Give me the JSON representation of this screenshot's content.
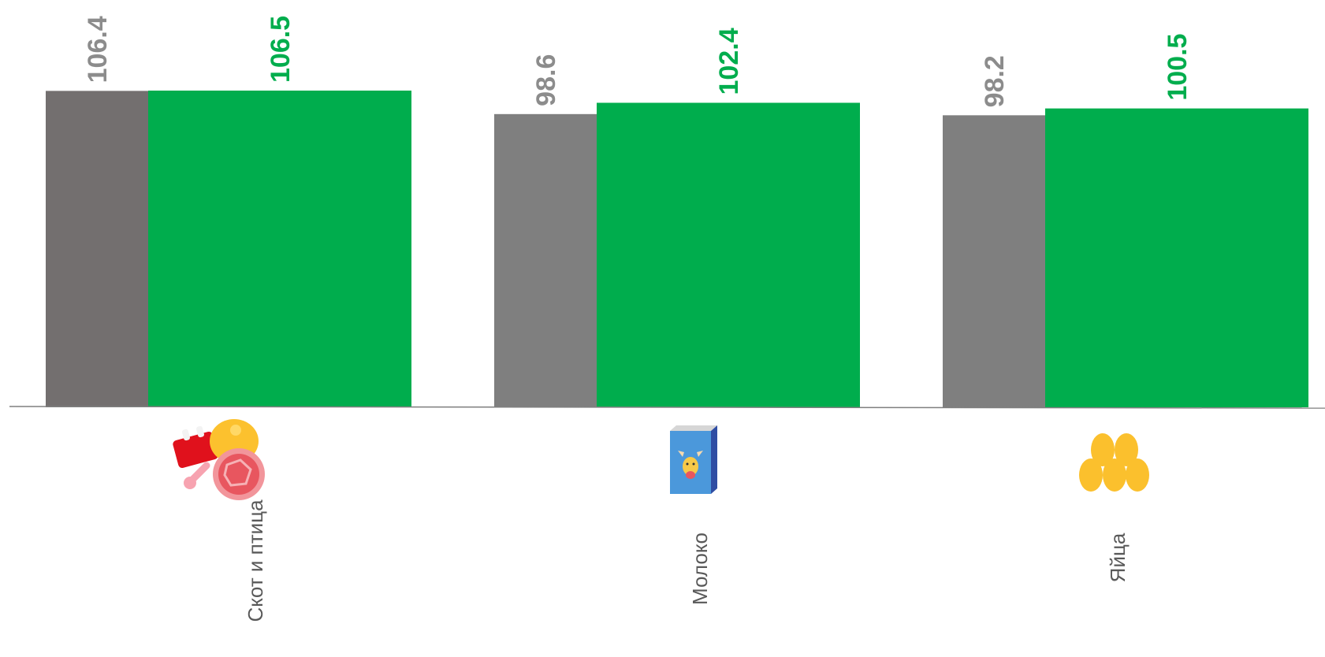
{
  "chart_data": {
    "type": "bar",
    "categories": [
      "Скот и птица",
      "Молоко",
      "Яйца"
    ],
    "category_icons": [
      "meat-poultry-icon",
      "milk-carton-icon",
      "eggs-icon"
    ],
    "series": [
      {
        "values": [
          106.4,
          98.6,
          98.2
        ],
        "color": "#7f7f7f",
        "label_color": "#8c8c8c"
      },
      {
        "values": [
          106.5,
          102.4,
          100.5
        ],
        "color": "#00ad4d",
        "label_color": "#00ad4d"
      }
    ],
    "value_labels": [
      [
        "106.4",
        "98.6",
        "98.2"
      ],
      [
        "106.5",
        "102.4",
        "100.5"
      ]
    ],
    "title": "",
    "xlabel": "",
    "ylabel": "",
    "ylim": [
      0,
      106.5
    ],
    "grid": false,
    "legend": "none"
  }
}
